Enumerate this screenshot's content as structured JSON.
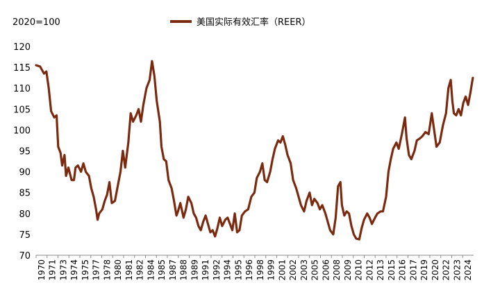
{
  "chart_data": {
    "type": "line",
    "unit_label": "2020=100",
    "title": "",
    "xlabel": "",
    "ylabel": "",
    "ylim": [
      70,
      120
    ],
    "yticks": [
      70,
      75,
      80,
      85,
      90,
      95,
      100,
      105,
      110,
      115,
      120
    ],
    "xlim": [
      1970,
      2025.5
    ],
    "xtick_labels": [
      "1970",
      "1971",
      "1973",
      "1974",
      "1975",
      "1977",
      "1978",
      "1980",
      "1981",
      "1982",
      "1984",
      "1985",
      "1987",
      "1988",
      "1989",
      "1991",
      "1992",
      "1994",
      "1995",
      "1996",
      "1998",
      "1999",
      "2001",
      "2002",
      "2003",
      "2005",
      "2006",
      "2008",
      "2009",
      "2010",
      "2012",
      "2013",
      "2015",
      "2016",
      "2017",
      "2019",
      "2020",
      "2022",
      "2023",
      "2024"
    ],
    "legend_position": "top-center",
    "grid": false,
    "series": [
      {
        "name": "美国实际有效汇率（REER）",
        "color": "#7b2a10",
        "points": [
          [
            1970.0,
            115.5
          ],
          [
            1970.5,
            115.2
          ],
          [
            1971.0,
            113.5
          ],
          [
            1971.3,
            114.0
          ],
          [
            1971.6,
            110.0
          ],
          [
            1971.9,
            104.5
          ],
          [
            1972.3,
            103.0
          ],
          [
            1972.6,
            103.5
          ],
          [
            1972.8,
            96.0
          ],
          [
            1973.1,
            94.5
          ],
          [
            1973.3,
            91.5
          ],
          [
            1973.6,
            94.0
          ],
          [
            1973.8,
            89.0
          ],
          [
            1974.1,
            91.0
          ],
          [
            1974.5,
            88.0
          ],
          [
            1974.8,
            88.0
          ],
          [
            1975.0,
            91.0
          ],
          [
            1975.3,
            91.5
          ],
          [
            1975.7,
            90.0
          ],
          [
            1976.0,
            92.0
          ],
          [
            1976.3,
            90.0
          ],
          [
            1976.7,
            89.0
          ],
          [
            1977.0,
            86.0
          ],
          [
            1977.3,
            84.0
          ],
          [
            1977.6,
            81.0
          ],
          [
            1977.8,
            78.5
          ],
          [
            1978.0,
            80.0
          ],
          [
            1978.4,
            81.0
          ],
          [
            1978.7,
            83.0
          ],
          [
            1979.0,
            84.5
          ],
          [
            1979.3,
            87.5
          ],
          [
            1979.6,
            82.5
          ],
          [
            1980.0,
            83.0
          ],
          [
            1980.3,
            86.0
          ],
          [
            1980.7,
            90.0
          ],
          [
            1981.0,
            95.0
          ],
          [
            1981.3,
            91.0
          ],
          [
            1981.7,
            97.0
          ],
          [
            1982.0,
            104.0
          ],
          [
            1982.3,
            102.0
          ],
          [
            1982.7,
            103.5
          ],
          [
            1983.0,
            105.0
          ],
          [
            1983.3,
            102.0
          ],
          [
            1983.6,
            106.0
          ],
          [
            1984.0,
            110.0
          ],
          [
            1984.4,
            112.0
          ],
          [
            1984.7,
            116.5
          ],
          [
            1985.0,
            113.0
          ],
          [
            1985.3,
            107.0
          ],
          [
            1985.7,
            102.0
          ],
          [
            1985.9,
            96.0
          ],
          [
            1986.2,
            93.0
          ],
          [
            1986.5,
            92.5
          ],
          [
            1986.8,
            88.0
          ],
          [
            1987.2,
            86.0
          ],
          [
            1987.5,
            83.0
          ],
          [
            1987.8,
            79.5
          ],
          [
            1988.0,
            80.5
          ],
          [
            1988.3,
            82.5
          ],
          [
            1988.7,
            79.0
          ],
          [
            1989.0,
            81.0
          ],
          [
            1989.3,
            84.0
          ],
          [
            1989.7,
            82.5
          ],
          [
            1990.0,
            80.0
          ],
          [
            1990.3,
            79.0
          ],
          [
            1990.6,
            77.0
          ],
          [
            1990.9,
            76.0
          ],
          [
            1991.2,
            78.0
          ],
          [
            1991.5,
            79.5
          ],
          [
            1991.8,
            77.5
          ],
          [
            1992.1,
            75.5
          ],
          [
            1992.4,
            76.0
          ],
          [
            1992.7,
            74.5
          ],
          [
            1993.0,
            76.5
          ],
          [
            1993.3,
            79.0
          ],
          [
            1993.6,
            77.0
          ],
          [
            1994.0,
            78.5
          ],
          [
            1994.3,
            79.0
          ],
          [
            1994.6,
            77.5
          ],
          [
            1994.9,
            76.0
          ],
          [
            1995.2,
            80.0
          ],
          [
            1995.5,
            75.5
          ],
          [
            1995.8,
            76.0
          ],
          [
            1996.1,
            79.5
          ],
          [
            1996.5,
            80.5
          ],
          [
            1996.9,
            81.0
          ],
          [
            1997.3,
            84.0
          ],
          [
            1997.7,
            85.0
          ],
          [
            1998.0,
            88.5
          ],
          [
            1998.4,
            90.0
          ],
          [
            1998.7,
            92.0
          ],
          [
            1999.0,
            88.0
          ],
          [
            1999.3,
            87.5
          ],
          [
            1999.7,
            90.0
          ],
          [
            2000.0,
            93.0
          ],
          [
            2000.3,
            95.5
          ],
          [
            2000.7,
            97.5
          ],
          [
            2001.0,
            97.0
          ],
          [
            2001.3,
            98.5
          ],
          [
            2001.6,
            96.5
          ],
          [
            2001.9,
            94.0
          ],
          [
            2002.3,
            92.0
          ],
          [
            2002.6,
            88.0
          ],
          [
            2003.0,
            86.0
          ],
          [
            2003.3,
            84.0
          ],
          [
            2003.6,
            82.0
          ],
          [
            2004.0,
            80.5
          ],
          [
            2004.3,
            83.0
          ],
          [
            2004.7,
            85.0
          ],
          [
            2005.0,
            82.0
          ],
          [
            2005.3,
            83.5
          ],
          [
            2005.7,
            82.5
          ],
          [
            2006.0,
            81.0
          ],
          [
            2006.3,
            82.0
          ],
          [
            2006.7,
            80.0
          ],
          [
            2007.0,
            78.0
          ],
          [
            2007.3,
            76.0
          ],
          [
            2007.7,
            75.0
          ],
          [
            2008.0,
            79.0
          ],
          [
            2008.3,
            86.5
          ],
          [
            2008.6,
            87.5
          ],
          [
            2008.8,
            82.0
          ],
          [
            2009.1,
            79.5
          ],
          [
            2009.4,
            80.5
          ],
          [
            2009.7,
            80.0
          ],
          [
            2010.0,
            77.0
          ],
          [
            2010.3,
            75.0
          ],
          [
            2010.6,
            74.0
          ],
          [
            2011.0,
            73.8
          ],
          [
            2011.3,
            76.5
          ],
          [
            2011.6,
            78.5
          ],
          [
            2012.0,
            80.0
          ],
          [
            2012.3,
            79.0
          ],
          [
            2012.6,
            77.5
          ],
          [
            2013.0,
            79.0
          ],
          [
            2013.3,
            80.0
          ],
          [
            2013.7,
            80.5
          ],
          [
            2014.0,
            80.5
          ],
          [
            2014.4,
            84.0
          ],
          [
            2014.7,
            90.0
          ],
          [
            2015.0,
            93.0
          ],
          [
            2015.3,
            95.5
          ],
          [
            2015.7,
            97.0
          ],
          [
            2016.0,
            95.5
          ],
          [
            2016.4,
            99.0
          ],
          [
            2016.8,
            103.0
          ],
          [
            2017.0,
            98.0
          ],
          [
            2017.3,
            94.0
          ],
          [
            2017.6,
            93.0
          ],
          [
            2018.0,
            95.0
          ],
          [
            2018.3,
            97.5
          ],
          [
            2018.7,
            98.0
          ],
          [
            2019.0,
            98.5
          ],
          [
            2019.4,
            99.5
          ],
          [
            2019.8,
            99.0
          ],
          [
            2020.2,
            104.0
          ],
          [
            2020.5,
            100.0
          ],
          [
            2020.8,
            96.0
          ],
          [
            2021.2,
            97.0
          ],
          [
            2021.6,
            101.0
          ],
          [
            2022.0,
            104.0
          ],
          [
            2022.3,
            110.0
          ],
          [
            2022.6,
            112.0
          ],
          [
            2022.8,
            107.0
          ],
          [
            2023.0,
            104.0
          ],
          [
            2023.3,
            103.5
          ],
          [
            2023.6,
            105.0
          ],
          [
            2023.9,
            103.5
          ],
          [
            2024.2,
            106.5
          ],
          [
            2024.5,
            108.0
          ],
          [
            2024.8,
            106.0
          ],
          [
            2025.1,
            109.0
          ],
          [
            2025.4,
            112.5
          ]
        ]
      }
    ]
  }
}
